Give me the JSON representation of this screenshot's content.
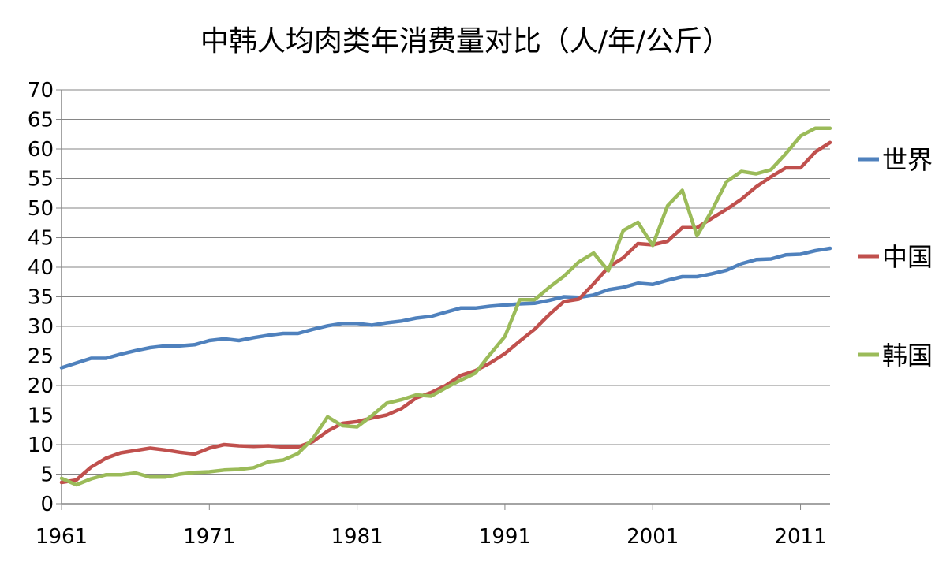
{
  "chart_data": {
    "type": "line",
    "title": "中韩人均肉类年消费量对比（人/年/公斤）",
    "xlabel": "",
    "ylabel": "",
    "xlim": [
      1961,
      2013
    ],
    "ylim": [
      0,
      70
    ],
    "yticks": [
      0,
      5,
      10,
      15,
      20,
      25,
      30,
      35,
      40,
      45,
      50,
      55,
      60,
      65,
      70
    ],
    "xticks": [
      1961,
      1971,
      1981,
      1991,
      2001,
      2011
    ],
    "grid": true,
    "legend": "right",
    "x": [
      1961,
      1962,
      1963,
      1964,
      1965,
      1966,
      1967,
      1968,
      1969,
      1970,
      1971,
      1972,
      1973,
      1974,
      1975,
      1976,
      1977,
      1978,
      1979,
      1980,
      1981,
      1982,
      1983,
      1984,
      1985,
      1986,
      1987,
      1988,
      1989,
      1990,
      1991,
      1992,
      1993,
      1994,
      1995,
      1996,
      1997,
      1998,
      1999,
      2000,
      2001,
      2002,
      2003,
      2004,
      2005,
      2006,
      2007,
      2008,
      2009,
      2010,
      2011,
      2012,
      2013
    ],
    "series": [
      {
        "name": "世界",
        "color": "#4f81bd",
        "values": [
          23.0,
          23.8,
          24.6,
          24.6,
          25.3,
          25.9,
          26.4,
          26.7,
          26.7,
          26.9,
          27.6,
          27.9,
          27.6,
          28.1,
          28.5,
          28.8,
          28.8,
          29.5,
          30.1,
          30.5,
          30.5,
          30.2,
          30.6,
          30.9,
          31.4,
          31.7,
          32.4,
          33.1,
          33.1,
          33.4,
          33.6,
          33.8,
          33.9,
          34.4,
          35.0,
          34.9,
          35.3,
          36.2,
          36.6,
          37.3,
          37.1,
          37.8,
          38.4,
          38.4,
          38.9,
          39.5,
          40.6,
          41.3,
          41.4,
          42.1,
          42.2,
          42.8,
          43.2
        ]
      },
      {
        "name": "中国",
        "color": "#c0504d",
        "values": [
          3.6,
          4.0,
          6.2,
          7.7,
          8.6,
          9.0,
          9.4,
          9.1,
          8.7,
          8.4,
          9.4,
          10.0,
          9.8,
          9.7,
          9.8,
          9.6,
          9.6,
          10.5,
          12.3,
          13.6,
          13.9,
          14.5,
          15.0,
          16.1,
          17.9,
          18.8,
          20.0,
          21.7,
          22.5,
          23.8,
          25.4,
          27.5,
          29.5,
          32.0,
          34.2,
          34.6,
          37.2,
          40.0,
          41.6,
          44.0,
          43.8,
          44.4,
          46.7,
          46.7,
          48.3,
          49.8,
          51.5,
          53.6,
          55.3,
          56.8,
          56.8,
          59.5,
          61.1
        ]
      },
      {
        "name": "韩国",
        "color": "#9bbb59",
        "values": [
          4.3,
          3.2,
          4.2,
          4.9,
          4.9,
          5.2,
          4.5,
          4.5,
          5.0,
          5.3,
          5.4,
          5.7,
          5.8,
          6.1,
          7.1,
          7.4,
          8.5,
          11.0,
          14.7,
          13.2,
          13.0,
          14.9,
          17.0,
          17.6,
          18.4,
          18.2,
          19.6,
          20.9,
          22.1,
          25.3,
          28.3,
          34.5,
          34.5,
          36.6,
          38.5,
          40.9,
          42.4,
          39.4,
          46.2,
          47.6,
          43.7,
          50.4,
          53.0,
          45.3,
          49.6,
          54.5,
          56.2,
          55.8,
          56.5,
          59.2,
          62.2,
          63.5,
          63.5
        ]
      }
    ]
  }
}
